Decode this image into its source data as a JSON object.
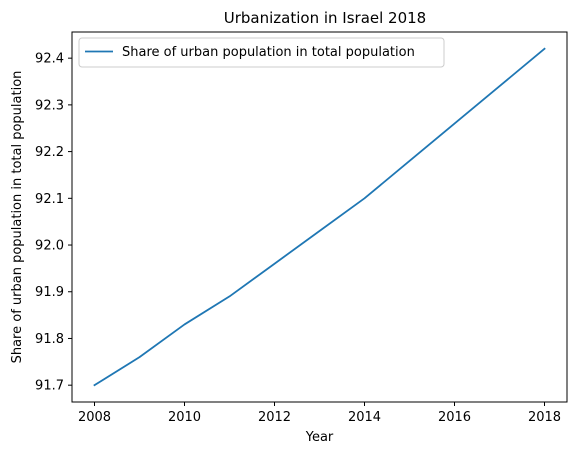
{
  "chart_data": {
    "type": "line",
    "title": "Urbanization in Israel 2018",
    "xlabel": "Year",
    "ylabel": "Share of urban population in total population",
    "x": [
      2008,
      2009,
      2010,
      2011,
      2012,
      2013,
      2014,
      2015,
      2016,
      2017,
      2018
    ],
    "series": [
      {
        "name": "Share of urban population in total population",
        "values": [
          91.7,
          91.76,
          91.83,
          91.89,
          91.96,
          92.03,
          92.1,
          92.18,
          92.26,
          92.34,
          92.42
        ],
        "color": "#1f77b4"
      }
    ],
    "xlim": [
      2007.5,
      2018.5
    ],
    "ylim": [
      91.664,
      92.456
    ],
    "xticks": [
      "2008",
      "2010",
      "2012",
      "2014",
      "2016",
      "2018"
    ],
    "yticks": [
      "91.7",
      "91.8",
      "91.9",
      "92.0",
      "92.1",
      "92.2",
      "92.3",
      "92.4"
    ],
    "grid": false,
    "legend_position": "upper-left"
  }
}
